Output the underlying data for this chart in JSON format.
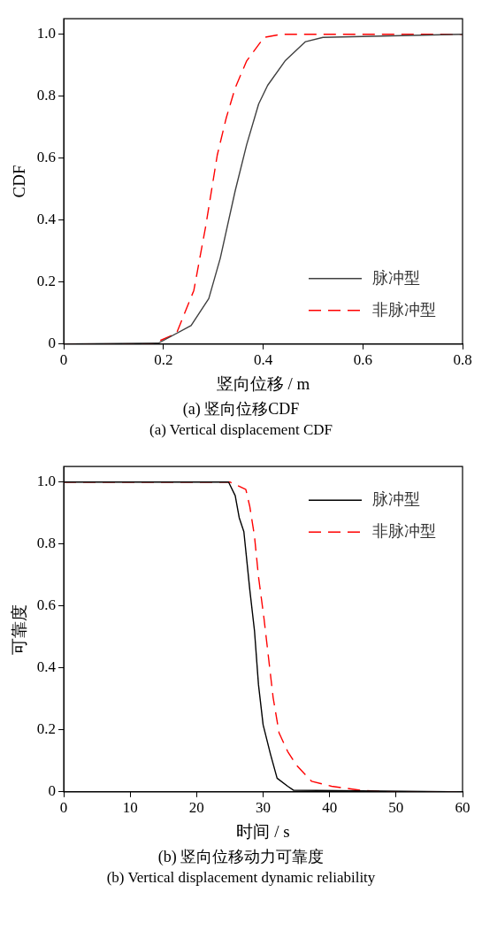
{
  "chart_data": [
    {
      "type": "line",
      "title": "(a) 竖向位移CDF",
      "subtitle": "(a) Vertical displacement CDF",
      "xlabel": "竖向位移 / m",
      "ylabel": "CDF",
      "xlim": [
        0,
        0.8
      ],
      "xticks": [
        0,
        0.2,
        0.4,
        0.6,
        0.8
      ],
      "ylim": [
        0,
        1.05
      ],
      "yticks": [
        0,
        0.2,
        0.4,
        0.6,
        0.8,
        {
          "value": 1,
          "label": "1.0"
        }
      ],
      "grid": false,
      "legend": "bottom right",
      "marker": "none",
      "series": [
        {
          "name": "脉冲型",
          "color": "#404040",
          "line_style": "solid",
          "x": [
            0,
            0.19,
            0.2555,
            0.291,
            0.314,
            0.344,
            0.367,
            0.391,
            0.409,
            0.444,
            0.485,
            0.52,
            0.8
          ],
          "values": [
            0,
            0.003,
            0.06,
            0.147,
            0.277,
            0.495,
            0.644,
            0.775,
            0.835,
            0.914,
            0.976,
            0.99,
            1
          ]
        },
        {
          "name": "非脉冲型",
          "color": "#ff0000",
          "line_style": "dashed",
          "x": [
            0,
            0.177,
            0.226,
            0.261,
            0.285,
            0.308,
            0.326,
            0.344,
            0.367,
            0.402,
            0.437,
            0.8
          ],
          "values": [
            0,
            0,
            0.034,
            0.173,
            0.382,
            0.61,
            0.73,
            0.827,
            0.914,
            0.99,
            1,
            1
          ]
        }
      ]
    },
    {
      "type": "line",
      "title": "(b) 竖向位移动力可靠度",
      "subtitle": "(b) Vertical displacement dynamic reliability",
      "xlabel": "时间 / s",
      "ylabel": "可靠度",
      "xlim": [
        0,
        60
      ],
      "xticks": [
        0,
        10,
        20,
        30,
        40,
        50,
        60
      ],
      "ylim": [
        0,
        1.05
      ],
      "yticks": [
        0,
        0.2,
        0.4,
        0.6,
        0.8,
        {
          "value": 1,
          "label": "1.0"
        }
      ],
      "grid": false,
      "legend": "top right",
      "marker": "none",
      "series": [
        {
          "name": "脉冲型",
          "color": "#000000",
          "line_style": "solid",
          "x": [
            0,
            24.8,
            25.8,
            26.4,
            27.1,
            28.0,
            28.7,
            29.3,
            30.0,
            31.1,
            32.1,
            33.7,
            34.6,
            60
          ],
          "values": [
            1,
            1,
            0.956,
            0.885,
            0.84,
            0.651,
            0.52,
            0.346,
            0.216,
            0.122,
            0.044,
            0.018,
            0.005,
            0
          ]
        },
        {
          "name": "非脉冲型",
          "color": "#ff0000",
          "line_style": "dashed",
          "x": [
            0,
            25,
            27.4,
            28.0,
            28.7,
            29.3,
            30.1,
            30.8,
            31.5,
            32.4,
            33.7,
            35.0,
            37.3,
            40.3,
            44.7,
            49.1,
            60
          ],
          "values": [
            1,
            1,
            0.976,
            0.92,
            0.825,
            0.695,
            0.565,
            0.435,
            0.305,
            0.19,
            0.13,
            0.086,
            0.034,
            0.018,
            0.005,
            0,
            0
          ]
        }
      ]
    }
  ]
}
